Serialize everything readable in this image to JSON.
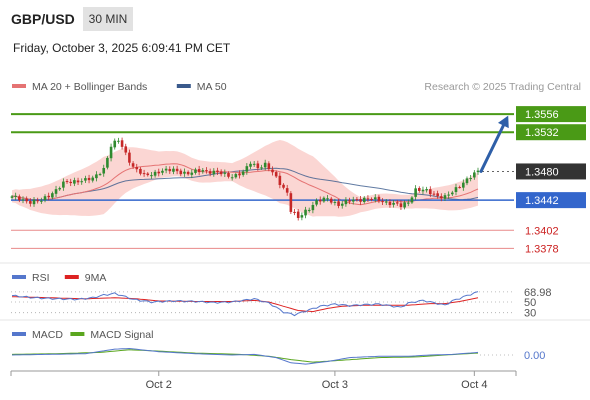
{
  "header": {
    "symbol": "GBP/USD",
    "timeframe": "30 MIN",
    "timestamp": "Friday, October 3, 2025 6:09:41 PM CET"
  },
  "colors": {
    "ma20": "#e57373",
    "bands_fill": "#fbd6d3",
    "ma50": "#3a5a8c",
    "resistance": "#4a9a16",
    "support": "#3366cc",
    "minor_support": "#e88a8a",
    "current": "#333333",
    "arrow": "#2e5fa8",
    "rsi": "#5577cc",
    "rsi_ma": "#dd2222",
    "macd": "#5577cc",
    "macd_signal": "#5aa61e"
  },
  "chart_data": [
    {
      "type": "candlestick",
      "legend": [
        {
          "name": "MA 20 + Bollinger Bands",
          "color": "#e57373"
        },
        {
          "name": "MA 50",
          "color": "#3a5a8c"
        }
      ],
      "legend_placement": "top-left",
      "credit": "Research © 2025 Trading Central",
      "ylim": [
        1.336,
        1.358
      ],
      "x_ticks": [
        {
          "label": "Oct 2",
          "index": 40
        },
        {
          "label": "Oct 3",
          "index": 88
        },
        {
          "label": "Oct 4",
          "index": 126
        }
      ],
      "levels": [
        {
          "value": 1.3556,
          "label": "1.3556",
          "kind": "resistance"
        },
        {
          "value": 1.3532,
          "label": "1.3532",
          "kind": "resistance"
        },
        {
          "value": 1.348,
          "label": "1.3480",
          "kind": "current"
        },
        {
          "value": 1.3442,
          "label": "1.3442",
          "kind": "support"
        },
        {
          "value": 1.3402,
          "label": "1.3402",
          "kind": "minor_support"
        },
        {
          "value": 1.3378,
          "label": "1.3378",
          "kind": "minor_support"
        }
      ],
      "forecast_arrow": {
        "from": 1.348,
        "to": 1.3548
      },
      "anchors": [
        [
          0,
          1.3446
        ],
        [
          5,
          1.344
        ],
        [
          8,
          1.3441
        ],
        [
          11,
          1.3452
        ],
        [
          14,
          1.3464
        ],
        [
          18,
          1.3468
        ],
        [
          22,
          1.347
        ],
        [
          25,
          1.3484
        ],
        [
          27,
          1.3514
        ],
        [
          29,
          1.3521
        ],
        [
          31,
          1.3504
        ],
        [
          33,
          1.3486
        ],
        [
          36,
          1.3474
        ],
        [
          40,
          1.348
        ],
        [
          44,
          1.3482
        ],
        [
          48,
          1.3477
        ],
        [
          52,
          1.3482
        ],
        [
          56,
          1.3478
        ],
        [
          60,
          1.3474
        ],
        [
          63,
          1.3478
        ],
        [
          65,
          1.3492
        ],
        [
          67,
          1.3486
        ],
        [
          69,
          1.3489
        ],
        [
          71,
          1.3478
        ],
        [
          73,
          1.3465
        ],
        [
          75,
          1.3452
        ],
        [
          76,
          1.3428
        ],
        [
          78,
          1.3418
        ],
        [
          80,
          1.3428
        ],
        [
          83,
          1.344
        ],
        [
          86,
          1.3444
        ],
        [
          89,
          1.3436
        ],
        [
          92,
          1.3441
        ],
        [
          96,
          1.3444
        ],
        [
          100,
          1.3442
        ],
        [
          104,
          1.3437
        ],
        [
          106,
          1.3434
        ],
        [
          108,
          1.344
        ],
        [
          110,
          1.3456
        ],
        [
          113,
          1.3454
        ],
        [
          116,
          1.3448
        ],
        [
          118,
          1.3446
        ],
        [
          120,
          1.3452
        ],
        [
          122,
          1.3462
        ],
        [
          124,
          1.347
        ],
        [
          126,
          1.3476
        ],
        [
          127,
          1.348
        ]
      ],
      "bands_width_pts": [
        [
          0,
          0.0008
        ],
        [
          25,
          0.0038
        ],
        [
          40,
          0.0018
        ],
        [
          60,
          0.0012
        ],
        [
          73,
          0.0042
        ],
        [
          82,
          0.004
        ],
        [
          95,
          0.001
        ],
        [
          108,
          0.0009
        ],
        [
          118,
          0.0016
        ],
        [
          127,
          0.0022
        ]
      ]
    },
    {
      "type": "line",
      "legend": [
        {
          "name": "RSI",
          "color": "#5577cc"
        },
        {
          "name": "9MA",
          "color": "#dd2222"
        }
      ],
      "ylim": [
        20,
        80
      ],
      "levels": [
        {
          "value": 68.98,
          "label": "68.98"
        },
        {
          "value": 50,
          "label": "50"
        },
        {
          "value": 30,
          "label": "30"
        }
      ],
      "rsi_anchors": [
        [
          0,
          62
        ],
        [
          6,
          58
        ],
        [
          12,
          56
        ],
        [
          18,
          55
        ],
        [
          22,
          58
        ],
        [
          25,
          63
        ],
        [
          28,
          66
        ],
        [
          30,
          62
        ],
        [
          33,
          55
        ],
        [
          38,
          50
        ],
        [
          44,
          52
        ],
        [
          50,
          51
        ],
        [
          55,
          49
        ],
        [
          60,
          50
        ],
        [
          64,
          54
        ],
        [
          66,
          56
        ],
        [
          68,
          52
        ],
        [
          70,
          48
        ],
        [
          72,
          40
        ],
        [
          74,
          31
        ],
        [
          77,
          26
        ],
        [
          80,
          33
        ],
        [
          84,
          42
        ],
        [
          88,
          46
        ],
        [
          92,
          43
        ],
        [
          96,
          45
        ],
        [
          100,
          46
        ],
        [
          104,
          42
        ],
        [
          106,
          40
        ],
        [
          108,
          48
        ],
        [
          112,
          53
        ],
        [
          116,
          47
        ],
        [
          118,
          44
        ],
        [
          120,
          52
        ],
        [
          124,
          62
        ],
        [
          127,
          68.98
        ]
      ],
      "ma_anchors": [
        [
          0,
          60
        ],
        [
          10,
          58
        ],
        [
          20,
          56
        ],
        [
          28,
          58
        ],
        [
          34,
          56
        ],
        [
          40,
          52
        ],
        [
          50,
          51
        ],
        [
          60,
          51
        ],
        [
          66,
          53
        ],
        [
          70,
          50
        ],
        [
          74,
          42
        ],
        [
          78,
          34
        ],
        [
          82,
          32
        ],
        [
          86,
          38
        ],
        [
          90,
          42
        ],
        [
          96,
          44
        ],
        [
          102,
          44
        ],
        [
          108,
          44
        ],
        [
          114,
          47
        ],
        [
          118,
          47
        ],
        [
          122,
          51
        ],
        [
          127,
          58
        ]
      ]
    },
    {
      "type": "line",
      "legend": [
        {
          "name": "MACD",
          "color": "#5577cc"
        },
        {
          "name": "MACD Signal",
          "color": "#5aa61e"
        }
      ],
      "ylim": [
        -0.002,
        0.002
      ],
      "levels": [
        {
          "value": 0.0,
          "label": "0.00"
        }
      ],
      "macd_anchors": [
        [
          0,
          0.0
        ],
        [
          10,
          0.0001
        ],
        [
          20,
          0.0002
        ],
        [
          28,
          0.0009
        ],
        [
          32,
          0.001
        ],
        [
          40,
          0.0005
        ],
        [
          50,
          0.0002
        ],
        [
          60,
          0.0
        ],
        [
          66,
          0.0001
        ],
        [
          72,
          -0.0004
        ],
        [
          76,
          -0.0012
        ],
        [
          80,
          -0.0014
        ],
        [
          86,
          -0.001
        ],
        [
          92,
          -0.0004
        ],
        [
          100,
          -0.0002
        ],
        [
          108,
          -0.0002
        ],
        [
          114,
          0.0
        ],
        [
          120,
          0.0001
        ],
        [
          127,
          0.0004
        ]
      ],
      "signal_anchors": [
        [
          0,
          0.0001
        ],
        [
          12,
          0.0002
        ],
        [
          24,
          0.0004
        ],
        [
          32,
          0.0008
        ],
        [
          40,
          0.0006
        ],
        [
          50,
          0.0003
        ],
        [
          62,
          0.0001
        ],
        [
          70,
          -0.0002
        ],
        [
          76,
          -0.0007
        ],
        [
          82,
          -0.0011
        ],
        [
          90,
          -0.0008
        ],
        [
          100,
          -0.0004
        ],
        [
          110,
          -0.0003
        ],
        [
          118,
          0.0
        ],
        [
          127,
          0.0003
        ]
      ]
    }
  ]
}
